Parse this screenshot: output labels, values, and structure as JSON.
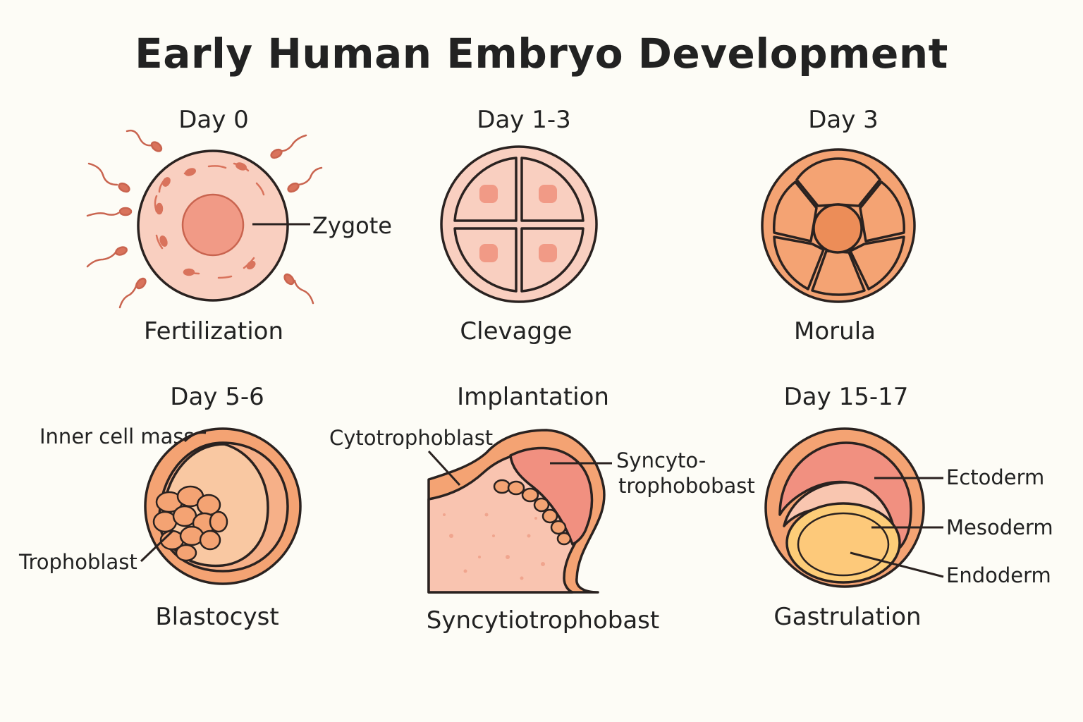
{
  "title": "Early Human Embryo Development",
  "colors": {
    "outline": "#2a2220",
    "zygote_fill": "#f9cfc0",
    "nucleus_fill": "#f19a86",
    "sperm": "#c9644f",
    "cleavage_fill": "#f9cfc0",
    "morula_fill": "#f4a373",
    "morula_center": "#ec8d58",
    "blastocyst_outer": "#f4a373",
    "blastocyst_inner": "#f9c8a2",
    "tissue": "#f9c4b0",
    "ectoderm": "#f19080",
    "mesoderm": "#f9c6b0",
    "endoderm": "#fdcd78"
  },
  "stages": [
    {
      "day": "Day 0",
      "name": "Fertilization",
      "labels": [
        "Zygote"
      ]
    },
    {
      "day": "Day 1-3",
      "name": "Clevagge",
      "labels": []
    },
    {
      "day": "Day 3",
      "name": "Morula",
      "labels": []
    },
    {
      "day": "Day 5-6",
      "name": "Blastocyst",
      "labels": [
        "Inner cell mass",
        "Trophoblast"
      ]
    },
    {
      "day": "Implantation",
      "name": "Syncytiotrophobast",
      "labels": [
        "Cytotrophoblast",
        "Syncyto-",
        "trophobobast"
      ]
    },
    {
      "day": "Day 15-17",
      "name": "Gastrulation",
      "labels": [
        "Ectoderm",
        "Mesoderm",
        "Endoderm"
      ]
    }
  ]
}
